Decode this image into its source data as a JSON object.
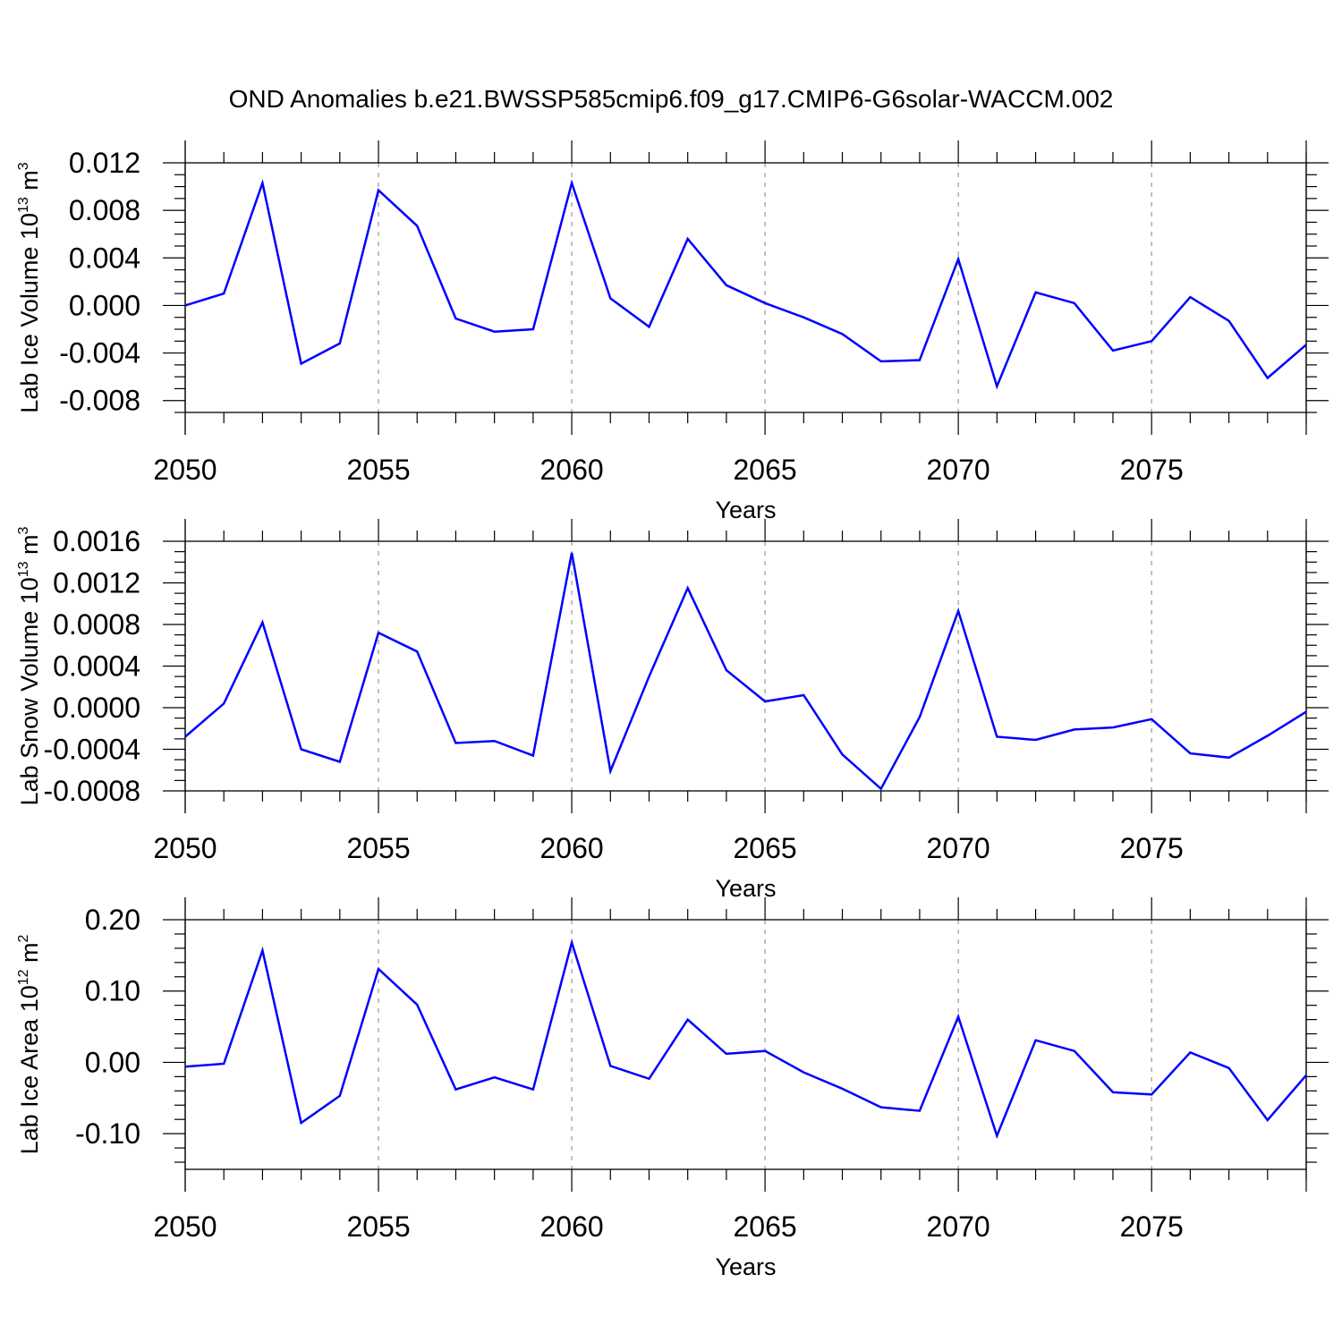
{
  "title": "OND Anomalies b.e21.BWSSP585cmip6.f09_g17.CMIP6-G6solar-WACCM.002",
  "colors": {
    "series": "#0000ff",
    "frame": "#000000",
    "grid": "#999999"
  },
  "chart_data": [
    {
      "type": "line",
      "ylabel": "Lab Ice Volume 10",
      "ylabel_sup": "13",
      "ylabel_unit": " m",
      "ylabel_unit_sup": "3",
      "xlabel": "Years",
      "xlim": [
        2050,
        2079
      ],
      "ylim": [
        -0.009,
        0.012
      ],
      "yticks": [
        0.012,
        0.008,
        0.004,
        0.0,
        -0.004,
        -0.008
      ],
      "ytick_labels": [
        "0.012",
        "0.008",
        "0.004",
        "0.000",
        "-0.004",
        "-0.008"
      ],
      "yminor_step": 0.001,
      "xticks": [
        2050,
        2055,
        2060,
        2065,
        2070,
        2075
      ],
      "xtick_labels": [
        "2050",
        "2055",
        "2060",
        "2065",
        "2070",
        "2075"
      ],
      "grid": "vertical dashed at major x ticks",
      "x": [
        2050,
        2051,
        2052,
        2053,
        2054,
        2055,
        2056,
        2057,
        2058,
        2059,
        2060,
        2061,
        2062,
        2063,
        2064,
        2065,
        2066,
        2067,
        2068,
        2069,
        2070,
        2071,
        2072,
        2073,
        2074,
        2075,
        2076,
        2077,
        2078,
        2079
      ],
      "y": [
        0.0,
        0.001,
        0.0103,
        -0.0049,
        -0.0032,
        0.0097,
        0.0067,
        -0.0011,
        -0.0022,
        -0.002,
        0.0103,
        0.0006,
        -0.0018,
        0.0056,
        0.0017,
        0.0002,
        -0.001,
        -0.0024,
        -0.0047,
        -0.0046,
        0.0039,
        -0.0068,
        0.0011,
        0.0002,
        -0.0038,
        -0.003,
        0.0007,
        -0.0013,
        -0.0061,
        -0.0033
      ]
    },
    {
      "type": "line",
      "ylabel": "Lab Snow Volume 10",
      "ylabel_sup": "13",
      "ylabel_unit": " m",
      "ylabel_unit_sup": "3",
      "xlabel": "Years",
      "xlim": [
        2050,
        2079
      ],
      "ylim": [
        -0.0008,
        0.0016
      ],
      "yticks": [
        0.0016,
        0.0012,
        0.0008,
        0.0004,
        0.0,
        -0.0004,
        -0.0008
      ],
      "ytick_labels": [
        "0.0016",
        "0.0012",
        "0.0008",
        "0.0004",
        "0.0000",
        "-0.0004",
        "-0.0008"
      ],
      "yminor_step": 0.0001,
      "xticks": [
        2050,
        2055,
        2060,
        2065,
        2070,
        2075
      ],
      "xtick_labels": [
        "2050",
        "2055",
        "2060",
        "2065",
        "2070",
        "2075"
      ],
      "grid": "vertical dashed at major x ticks",
      "x": [
        2050,
        2051,
        2052,
        2053,
        2054,
        2055,
        2056,
        2057,
        2058,
        2059,
        2060,
        2061,
        2062,
        2063,
        2064,
        2065,
        2066,
        2067,
        2068,
        2069,
        2070,
        2071,
        2072,
        2073,
        2074,
        2075,
        2076,
        2077,
        2078,
        2079
      ],
      "y": [
        -0.00028,
        4e-05,
        0.00082,
        -0.0004,
        -0.00052,
        0.00072,
        0.00054,
        -0.00034,
        -0.00032,
        -0.00046,
        0.00149,
        -0.00061,
        0.0003,
        0.00115,
        0.00036,
        6e-05,
        0.00012,
        -0.00045,
        -0.00078,
        -9e-05,
        0.00093,
        -0.00028,
        -0.00031,
        -0.00021,
        -0.00019,
        -0.00011,
        -0.00044,
        -0.00048,
        -0.00027,
        -4e-05
      ]
    },
    {
      "type": "line",
      "ylabel": "Lab Ice Area 10",
      "ylabel_sup": "12",
      "ylabel_unit": " m",
      "ylabel_unit_sup": "2",
      "xlabel": "Years",
      "xlim": [
        2050,
        2079
      ],
      "ylim": [
        -0.15,
        0.2
      ],
      "yticks": [
        0.2,
        0.1,
        0.0,
        -0.1
      ],
      "ytick_labels": [
        "0.20",
        "0.10",
        "0.00",
        "-0.10"
      ],
      "yminor_step": 0.02,
      "xticks": [
        2050,
        2055,
        2060,
        2065,
        2070,
        2075
      ],
      "xtick_labels": [
        "2050",
        "2055",
        "2060",
        "2065",
        "2070",
        "2075"
      ],
      "grid": "vertical dashed at major x ticks",
      "x": [
        2050,
        2051,
        2052,
        2053,
        2054,
        2055,
        2056,
        2057,
        2058,
        2059,
        2060,
        2061,
        2062,
        2063,
        2064,
        2065,
        2066,
        2067,
        2068,
        2069,
        2070,
        2071,
        2072,
        2073,
        2074,
        2075,
        2076,
        2077,
        2078,
        2079
      ],
      "y": [
        -0.006,
        -0.002,
        0.157,
        -0.085,
        -0.047,
        0.131,
        0.081,
        -0.038,
        -0.021,
        -0.038,
        0.168,
        -0.005,
        -0.023,
        0.06,
        0.012,
        0.016,
        -0.014,
        -0.037,
        -0.063,
        -0.068,
        0.064,
        -0.103,
        0.031,
        0.016,
        -0.042,
        -0.045,
        0.014,
        -0.008,
        -0.081,
        -0.018
      ]
    }
  ]
}
